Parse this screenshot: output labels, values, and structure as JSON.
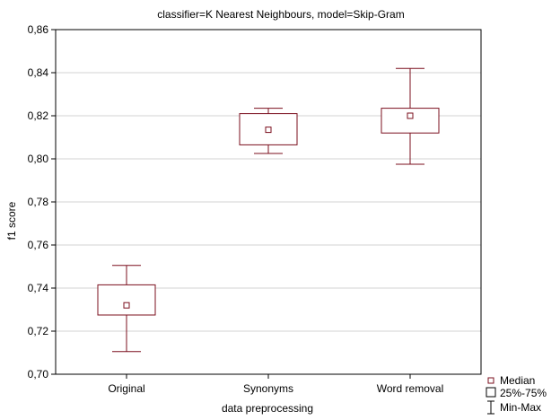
{
  "chart_data": {
    "type": "box",
    "title": "classifier=K Nearest Neighbours, model=Skip-Gram",
    "xlabel": "data preprocessing",
    "ylabel": "f1 score",
    "ylim": [
      0.7,
      0.86
    ],
    "yticks": [
      "0,70",
      "0,72",
      "0,74",
      "0,76",
      "0,78",
      "0,80",
      "0,82",
      "0,84",
      "0,86"
    ],
    "ytick_values": [
      0.7,
      0.72,
      0.74,
      0.76,
      0.78,
      0.8,
      0.82,
      0.84,
      0.86
    ],
    "grid": true,
    "legend_position": "bottom-right",
    "categories": [
      "Original",
      "Synonyms",
      "Word removal"
    ],
    "series": [
      {
        "category": "Original",
        "min": 0.7105,
        "q1": 0.7275,
        "median": 0.732,
        "q3": 0.7415,
        "max": 0.7505
      },
      {
        "category": "Synonyms",
        "min": 0.8025,
        "q1": 0.8065,
        "median": 0.8135,
        "q3": 0.821,
        "max": 0.8235
      },
      {
        "category": "Word removal",
        "min": 0.7975,
        "q1": 0.812,
        "median": 0.82,
        "q3": 0.8235,
        "max": 0.842
      }
    ],
    "legend": {
      "median": "Median",
      "box": "25%-75%",
      "whisker": "Min-Max"
    },
    "color": "#7b0f1e"
  }
}
